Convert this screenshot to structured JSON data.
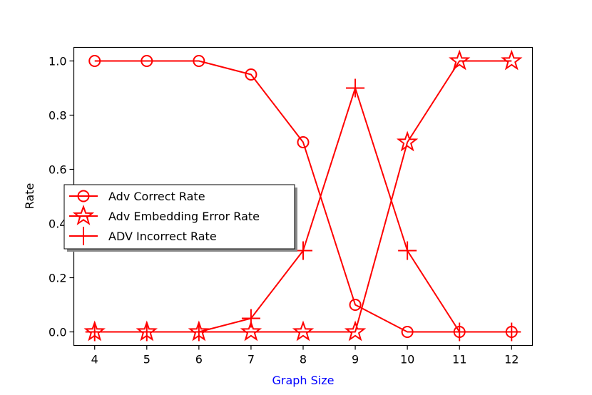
{
  "chart_data": {
    "type": "line",
    "title": "",
    "xlabel": "Graph Size",
    "ylabel": "Rate",
    "x": [
      4,
      5,
      6,
      7,
      8,
      9,
      10,
      11,
      12
    ],
    "xticks": [
      "4",
      "5",
      "6",
      "7",
      "8",
      "9",
      "10",
      "11",
      "12"
    ],
    "yticks": [
      "0.0",
      "0.2",
      "0.4",
      "0.6",
      "0.8",
      "1.0"
    ],
    "xlim": [
      3.6,
      12.4
    ],
    "ylim": [
      -0.05,
      1.05
    ],
    "grid": false,
    "legend_position": "center-left",
    "colors": {
      "series": "#ff0000",
      "xlabel": "#0000ff",
      "ylabel": "#000000"
    },
    "series": [
      {
        "name": "Adv Correct Rate",
        "marker": "circle",
        "values": [
          1.0,
          1.0,
          1.0,
          0.95,
          0.7,
          0.1,
          0.0,
          0.0,
          0.0
        ]
      },
      {
        "name": "Adv Embedding Error Rate",
        "marker": "star",
        "values": [
          0.0,
          0.0,
          0.0,
          0.0,
          0.0,
          0.0,
          0.7,
          1.0,
          1.0
        ]
      },
      {
        "name": "ADV Incorrect Rate",
        "marker": "plus",
        "values": [
          0.0,
          0.0,
          0.0,
          0.05,
          0.3,
          0.9,
          0.3,
          0.0,
          0.0
        ]
      }
    ]
  }
}
